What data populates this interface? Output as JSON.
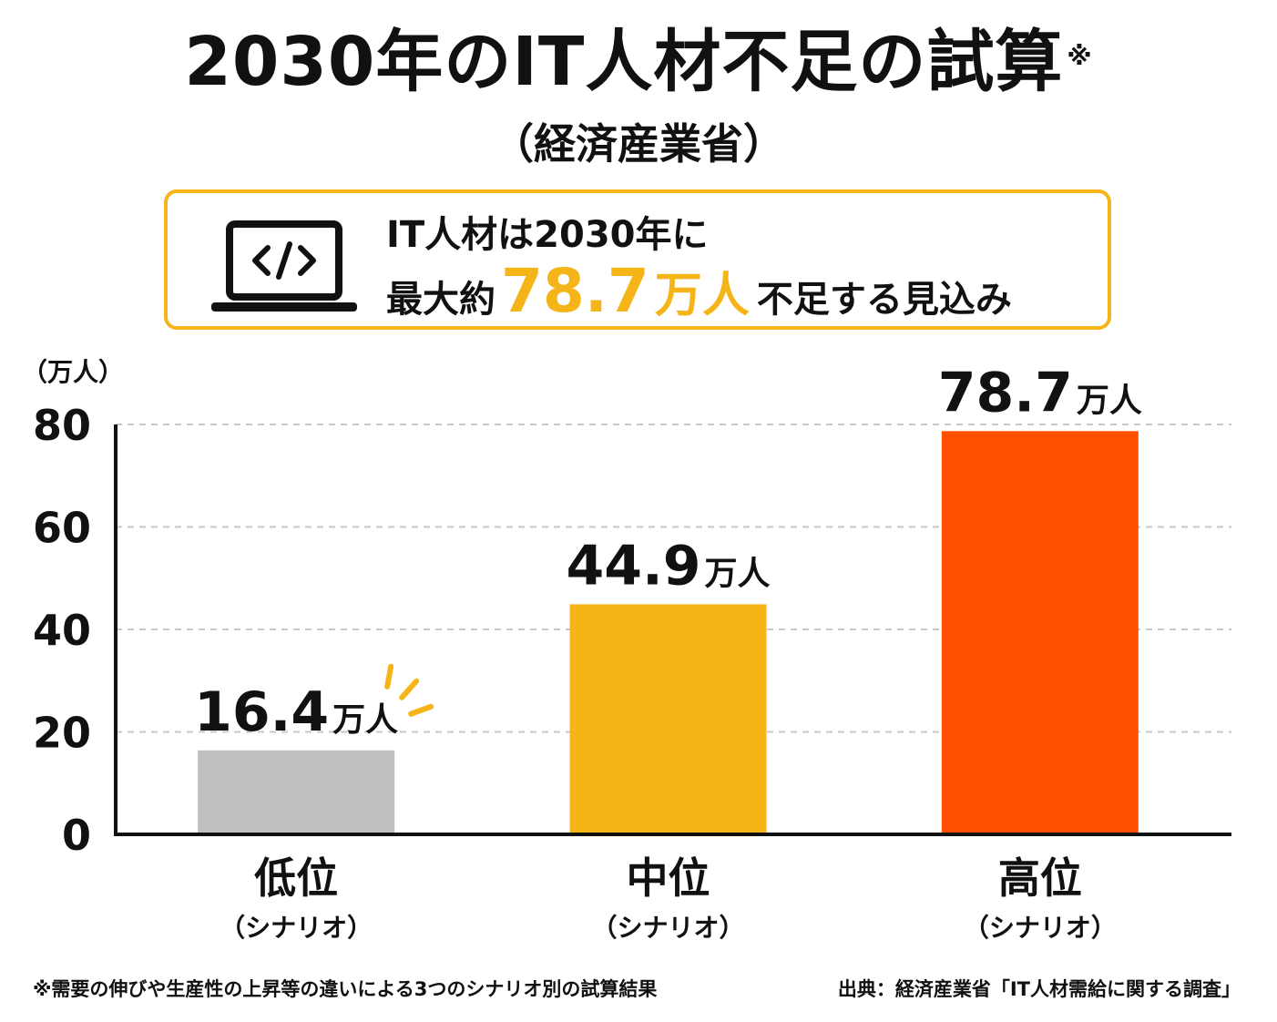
{
  "header": {
    "title": "2030年のIT人材不足の試算",
    "title_mark": "※",
    "subtitle": "（経済産業省）"
  },
  "callout": {
    "icon": "laptop-code-icon",
    "line1": "IT人材は2030年に",
    "prefix": "最大約",
    "highlight_value": "78.7",
    "highlight_unit": "万人",
    "suffix": "不足する見込み",
    "accent_color": "#f5b417"
  },
  "chart_data": {
    "type": "bar",
    "ylabel": "（万人）",
    "ylim": [
      0,
      80
    ],
    "yticks": [
      0,
      20,
      40,
      60,
      80
    ],
    "grid": true,
    "categories": [
      {
        "label": "低位",
        "sublabel": "（シナリオ）"
      },
      {
        "label": "中位",
        "sublabel": "（シナリオ）"
      },
      {
        "label": "高位",
        "sublabel": "（シナリオ）"
      }
    ],
    "values": [
      16.4,
      44.9,
      78.7
    ],
    "value_labels": [
      "16.4",
      "44.9",
      "78.7"
    ],
    "value_unit": "万人",
    "colors": [
      "#c0c0c0",
      "#f5b417",
      "#fe5000"
    ],
    "highlight_burst_color": "#f5b417"
  },
  "footer": {
    "note": "※需要の伸びや生産性の上昇等の違いによる3つのシナリオ別の試算結果",
    "source": "出典：経済産業省「IT人材需給に関する調査」"
  }
}
